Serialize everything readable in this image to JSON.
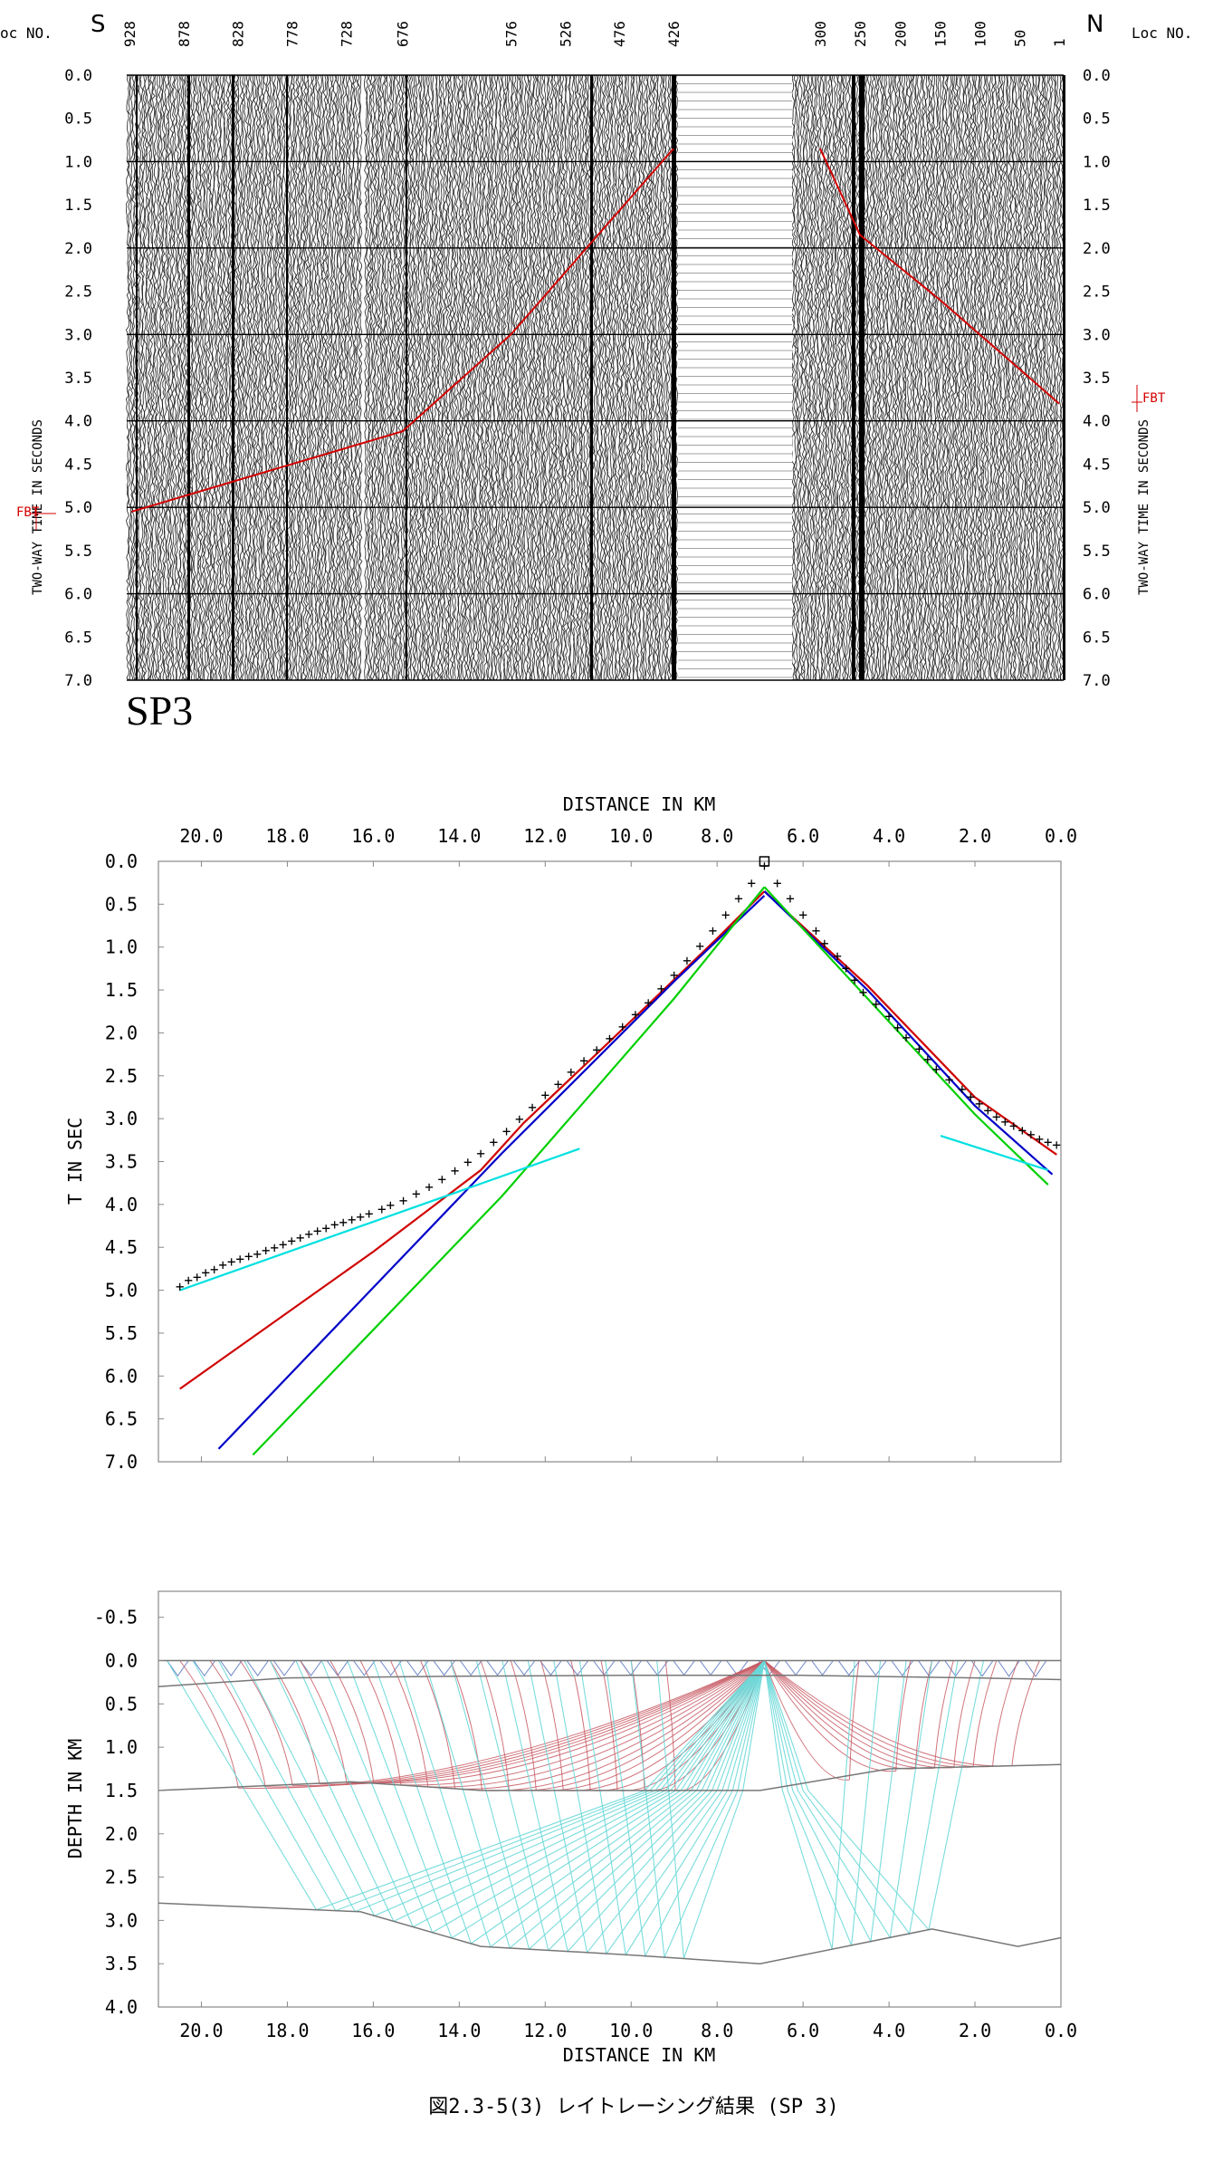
{
  "figure_caption": "図2.3-5(3) レイトレーシング結果 (SP 3)",
  "chart_data": [
    {
      "type": "scatter",
      "panel": "seismic-record-section",
      "shot_label": "SP3",
      "left_direction": "S",
      "right_direction": "N",
      "loc_axis_label_left": "oc NO.",
      "loc_axis_label_right": "Loc NO.",
      "loc_ticks_left_block": [
        "928",
        "878",
        "828",
        "778",
        "728",
        "676",
        "576",
        "526",
        "476",
        "426"
      ],
      "loc_ticks_right_block": [
        "300",
        "250",
        "200",
        "150",
        "100",
        "50",
        "1"
      ],
      "ylabel": "TWO-WAY TIME IN SECONDS",
      "ylim": [
        0.0,
        7.0
      ],
      "yticks": [
        "0.0",
        "0.5",
        "1.0",
        "1.5",
        "2.0",
        "2.5",
        "3.0",
        "3.5",
        "4.0",
        "4.5",
        "5.0",
        "5.5",
        "6.0",
        "6.5",
        "7.0"
      ],
      "markers": [
        {
          "side": "left",
          "label": "FBT",
          "time": 5.0
        },
        {
          "side": "right",
          "label": "FBT",
          "time": 3.8
        }
      ],
      "first_break_pick_color": "#d40000",
      "first_break_pick_left": {
        "loc": [
          926,
          676,
          576,
          426
        ],
        "time": [
          5.05,
          4.12,
          3.0,
          0.85
        ]
      },
      "first_break_pick_right": {
        "loc": [
          300,
          250,
          150,
          1
        ],
        "time": [
          0.85,
          1.85,
          2.6,
          3.8
        ]
      }
    },
    {
      "type": "line",
      "panel": "travel-time",
      "xlabel": "DISTANCE IN KM",
      "ylabel": "T IN SEC",
      "xlim": [
        21.0,
        0.0
      ],
      "ylim": [
        0.0,
        7.0
      ],
      "xticks": [
        "20.0",
        "18.0",
        "16.0",
        "14.0",
        "12.0",
        "10.0",
        "8.0",
        "6.0",
        "4.0",
        "2.0",
        "0.0"
      ],
      "yticks": [
        "0.0",
        "0.5",
        "1.0",
        "1.5",
        "2.0",
        "2.5",
        "3.0",
        "3.5",
        "4.0",
        "4.5",
        "5.0",
        "5.5",
        "6.0",
        "6.5",
        "7.0"
      ],
      "shot_position_km": 6.9,
      "observed": {
        "marker": "+",
        "x": [
          20.5,
          20.3,
          20.1,
          19.9,
          19.7,
          19.5,
          19.3,
          19.1,
          18.9,
          18.7,
          18.5,
          18.3,
          18.1,
          17.9,
          17.7,
          17.5,
          17.3,
          17.1,
          16.9,
          16.7,
          16.5,
          16.3,
          16.1,
          15.8,
          15.6,
          15.3,
          15.0,
          14.7,
          14.4,
          14.1,
          13.8,
          13.5,
          13.2,
          12.9,
          12.6,
          12.3,
          12.0,
          11.7,
          11.4,
          11.1,
          10.8,
          10.5,
          10.2,
          9.9,
          9.6,
          9.3,
          9.0,
          8.7,
          8.4,
          8.1,
          7.8,
          7.5,
          7.2,
          6.9,
          6.6,
          6.3,
          6.0,
          5.7,
          5.5,
          5.2,
          5.0,
          4.8,
          4.6,
          4.3,
          4.0,
          3.8,
          3.6,
          3.3,
          3.1,
          2.9,
          2.6,
          2.3,
          2.1,
          1.9,
          1.7,
          1.5,
          1.3,
          1.1,
          0.9,
          0.7,
          0.5,
          0.3,
          0.1
        ],
        "y": [
          4.95,
          4.88,
          4.84,
          4.79,
          4.75,
          4.7,
          4.66,
          4.63,
          4.6,
          4.57,
          4.53,
          4.5,
          4.46,
          4.42,
          4.38,
          4.34,
          4.3,
          4.27,
          4.23,
          4.2,
          4.17,
          4.14,
          4.1,
          4.05,
          4.0,
          3.95,
          3.87,
          3.79,
          3.7,
          3.6,
          3.5,
          3.4,
          3.27,
          3.14,
          3.0,
          2.86,
          2.72,
          2.59,
          2.45,
          2.32,
          2.19,
          2.06,
          1.92,
          1.78,
          1.64,
          1.48,
          1.32,
          1.15,
          0.98,
          0.8,
          0.62,
          0.43,
          0.25,
          0.05,
          0.25,
          0.43,
          0.62,
          0.8,
          0.95,
          1.1,
          1.24,
          1.38,
          1.52,
          1.66,
          1.8,
          1.93,
          2.05,
          2.18,
          2.3,
          2.42,
          2.54,
          2.65,
          2.74,
          2.82,
          2.9,
          2.97,
          3.03,
          3.08,
          3.13,
          3.18,
          3.23,
          3.27,
          3.3
        ]
      },
      "series": [
        {
          "name": "",
          "color": "#d00000",
          "x": [
            20.5,
            16.0,
            13.5,
            12.5,
            10.5,
            8.0,
            6.9
          ],
          "y": [
            6.15,
            4.55,
            3.6,
            3.05,
            2.1,
            0.9,
            0.35
          ]
        },
        {
          "name": "",
          "color": "#d00000",
          "x": [
            6.9,
            4.5,
            2.0,
            0.1
          ],
          "y": [
            0.35,
            1.45,
            2.75,
            3.42
          ]
        },
        {
          "name": "",
          "color": "#0000c8",
          "x": [
            19.6,
            13.0,
            9.0,
            6.9
          ],
          "y": [
            6.85,
            3.4,
            1.4,
            0.4
          ]
        },
        {
          "name": "",
          "color": "#0000c8",
          "x": [
            6.9,
            4.5,
            2.0,
            0.2
          ],
          "y": [
            0.35,
            1.5,
            2.85,
            3.65
          ]
        },
        {
          "name": "",
          "color": "#00d000",
          "x": [
            18.8,
            13.0,
            9.0,
            6.9
          ],
          "y": [
            6.92,
            3.9,
            1.6,
            0.3
          ]
        },
        {
          "name": "",
          "color": "#00d000",
          "x": [
            6.9,
            4.5,
            2.0,
            0.3
          ],
          "y": [
            0.3,
            1.6,
            2.95,
            3.77
          ]
        },
        {
          "name": "",
          "color": "#00e0e0",
          "x": [
            20.5,
            11.2
          ],
          "y": [
            5.0,
            3.35
          ]
        },
        {
          "name": "",
          "color": "#00e0e0",
          "x": [
            2.8,
            0.3
          ],
          "y": [
            3.2,
            3.6
          ]
        }
      ]
    },
    {
      "type": "line",
      "panel": "ray-tracing-depth-model",
      "xlabel": "DISTANCE IN KM",
      "ylabel": "DEPTH IN KM",
      "xlim": [
        21.0,
        0.0
      ],
      "ylim": [
        -0.8,
        4.0
      ],
      "xticks": [
        "20.0",
        "18.0",
        "16.0",
        "14.0",
        "12.0",
        "10.0",
        "8.0",
        "6.0",
        "4.0",
        "2.0",
        "0.0"
      ],
      "yticks": [
        "-0.5",
        "0.0",
        "0.5",
        "1.0",
        "1.5",
        "2.0",
        "2.5",
        "3.0",
        "3.5",
        "4.0"
      ],
      "source_position_km": 6.9,
      "layer_boundaries": [
        {
          "x": [
            21.0,
            0.0
          ],
          "y": [
            0.0,
            0.0
          ]
        },
        {
          "x": [
            21.0,
            18.0,
            14.0,
            10.0,
            6.0,
            2.0,
            0.0
          ],
          "y": [
            0.3,
            0.2,
            0.18,
            0.17,
            0.17,
            0.2,
            0.22
          ]
        },
        {
          "x": [
            21.0,
            16.5,
            13.5,
            10.0,
            7.0,
            4.0,
            0.0
          ],
          "y": [
            1.5,
            1.4,
            1.5,
            1.5,
            1.5,
            1.25,
            1.2
          ]
        },
        {
          "x": [
            21.0,
            16.3,
            13.5,
            10.0,
            7.0,
            4.0,
            3.0,
            1.0,
            0.0
          ],
          "y": [
            2.8,
            2.9,
            3.3,
            3.4,
            3.5,
            3.2,
            3.1,
            3.3,
            3.2
          ]
        }
      ],
      "ray_colors": {
        "shallow": "#6e86c8",
        "intermediate": "#c85a64",
        "deep": "#6ad8d8"
      }
    }
  ]
}
